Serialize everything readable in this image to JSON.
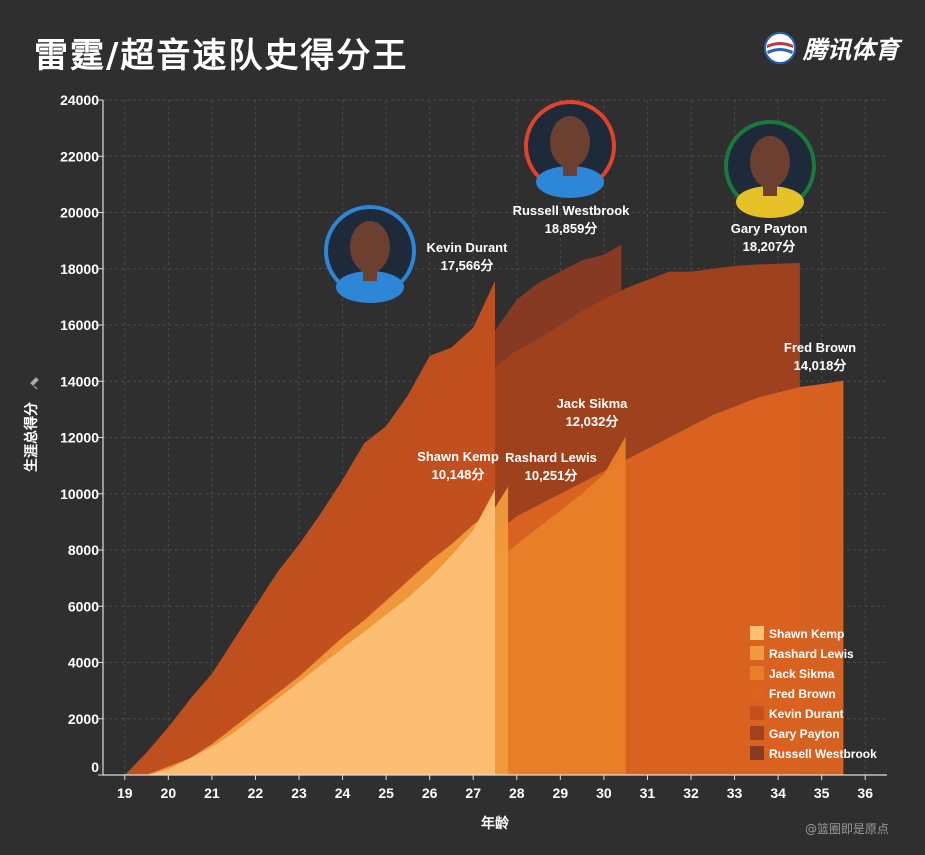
{
  "title": "雷霆/超音速队史得分王",
  "logo": {
    "text": "腾讯体育"
  },
  "watermark": "@篮圈即是原点",
  "chart_data": {
    "type": "area",
    "xlabel": "年龄",
    "ylabel": "生涯总得分",
    "xlim": [
      18.5,
      36.5
    ],
    "ylim": [
      0,
      24000
    ],
    "x_ticks": [
      "19",
      "20",
      "21",
      "22",
      "23",
      "24",
      "25",
      "26",
      "27",
      "28",
      "29",
      "30",
      "31",
      "32",
      "33",
      "34",
      "35",
      "36"
    ],
    "y_ticks": [
      "0",
      "2000",
      "4000",
      "6000",
      "8000",
      "10000",
      "12000",
      "14000",
      "16000",
      "18000",
      "20000",
      "22000",
      "24000"
    ],
    "grid": true,
    "legend_position": "bottom-right",
    "series": [
      {
        "name": "Russell Westbrook",
        "color": "#8a3a22",
        "label": "Russell Westbrook",
        "total": "18,859分",
        "points": [
          [
            19.5,
            0
          ],
          [
            20,
            1000
          ],
          [
            20.5,
            1800
          ],
          [
            21,
            2600
          ],
          [
            21.5,
            3600
          ],
          [
            22,
            4900
          ],
          [
            22.5,
            6000
          ],
          [
            23,
            7300
          ],
          [
            23.5,
            8300
          ],
          [
            24,
            9300
          ],
          [
            24.5,
            10100
          ],
          [
            25,
            11200
          ],
          [
            25.5,
            12500
          ],
          [
            26,
            13200
          ],
          [
            26.5,
            14400
          ],
          [
            27,
            15200
          ],
          [
            27.5,
            15800
          ],
          [
            28,
            16900
          ],
          [
            28.5,
            17500
          ],
          [
            29,
            17900
          ],
          [
            29.5,
            18300
          ],
          [
            30,
            18500
          ],
          [
            30.4,
            18859
          ]
        ]
      },
      {
        "name": "Gary Payton",
        "color": "#a1421e",
        "label": "Gary Payton",
        "total": "18,207分",
        "points": [
          [
            20,
            0
          ],
          [
            20.5,
            500
          ],
          [
            21,
            1200
          ],
          [
            21.5,
            1900
          ],
          [
            22,
            2800
          ],
          [
            22.5,
            3800
          ],
          [
            23,
            4800
          ],
          [
            23.5,
            5900
          ],
          [
            24,
            7100
          ],
          [
            24.5,
            8300
          ],
          [
            25,
            9500
          ],
          [
            25.5,
            10800
          ],
          [
            26,
            12000
          ],
          [
            26.5,
            13000
          ],
          [
            27,
            13800
          ],
          [
            27.5,
            14500
          ],
          [
            28,
            15100
          ],
          [
            28.5,
            15500
          ],
          [
            29,
            16000
          ],
          [
            29.5,
            16500
          ],
          [
            30,
            16900
          ],
          [
            30.5,
            17300
          ],
          [
            31,
            17600
          ],
          [
            31.5,
            17900
          ],
          [
            32,
            17900
          ],
          [
            32.5,
            18000
          ],
          [
            33,
            18100
          ],
          [
            33.5,
            18150
          ],
          [
            34,
            18180
          ],
          [
            34.5,
            18207
          ]
        ]
      },
      {
        "name": "Kevin Durant",
        "color": "#c4501e",
        "label": "Kevin Durant",
        "total": "17,566分",
        "points": [
          [
            19,
            0
          ],
          [
            19.5,
            800
          ],
          [
            20,
            1700
          ],
          [
            20.5,
            2700
          ],
          [
            21,
            3600
          ],
          [
            21.5,
            4800
          ],
          [
            22,
            6000
          ],
          [
            22.5,
            7200
          ],
          [
            23,
            8200
          ],
          [
            23.5,
            9300
          ],
          [
            24,
            10500
          ],
          [
            24.5,
            11800
          ],
          [
            25,
            12400
          ],
          [
            25.5,
            13500
          ],
          [
            26,
            14900
          ],
          [
            26.5,
            15200
          ],
          [
            27,
            15900
          ],
          [
            27.5,
            17566
          ]
        ]
      },
      {
        "name": "Fred Brown",
        "color": "#dc6420",
        "label": "Fred Brown",
        "total": "14,018分",
        "points": [
          [
            20.5,
            0
          ],
          [
            21,
            300
          ],
          [
            21.5,
            800
          ],
          [
            22,
            1400
          ],
          [
            22.5,
            2100
          ],
          [
            23,
            2800
          ],
          [
            23.5,
            3400
          ],
          [
            24,
            4100
          ],
          [
            24.5,
            4700
          ],
          [
            25,
            5400
          ],
          [
            25.5,
            6100
          ],
          [
            26,
            6800
          ],
          [
            26.5,
            7400
          ],
          [
            27,
            8000
          ],
          [
            27.5,
            8600
          ],
          [
            28,
            9200
          ],
          [
            28.5,
            9600
          ],
          [
            29,
            10000
          ],
          [
            29.5,
            10400
          ],
          [
            30,
            10800
          ],
          [
            30.5,
            11200
          ],
          [
            31,
            11600
          ],
          [
            31.5,
            12000
          ],
          [
            32,
            12400
          ],
          [
            32.5,
            12800
          ],
          [
            33,
            13100
          ],
          [
            33.5,
            13400
          ],
          [
            34,
            13600
          ],
          [
            34.5,
            13800
          ],
          [
            35,
            13900
          ],
          [
            35.5,
            14018
          ]
        ]
      },
      {
        "name": "Jack Sikma",
        "color": "#e87f28",
        "label": "Jack Sikma",
        "total": "12,032分",
        "points": [
          [
            21,
            0
          ],
          [
            21.5,
            400
          ],
          [
            22,
            1000
          ],
          [
            22.5,
            1600
          ],
          [
            23,
            2200
          ],
          [
            23.5,
            2800
          ],
          [
            24,
            3400
          ],
          [
            24.5,
            4000
          ],
          [
            25,
            4600
          ],
          [
            25.5,
            5200
          ],
          [
            26,
            5800
          ],
          [
            26.5,
            6400
          ],
          [
            27,
            7000
          ],
          [
            27.5,
            7600
          ],
          [
            28,
            8200
          ],
          [
            28.5,
            8800
          ],
          [
            29,
            9400
          ],
          [
            29.5,
            10000
          ],
          [
            30,
            10700
          ],
          [
            30.5,
            12032
          ]
        ]
      },
      {
        "name": "Rashard Lewis",
        "color": "#f19a3c",
        "label": "Rashard Lewis",
        "total": "10,251分",
        "points": [
          [
            19.5,
            0
          ],
          [
            20,
            300
          ],
          [
            20.5,
            600
          ],
          [
            21,
            1100
          ],
          [
            21.5,
            1700
          ],
          [
            22,
            2300
          ],
          [
            22.5,
            2900
          ],
          [
            23,
            3500
          ],
          [
            23.5,
            4200
          ],
          [
            24,
            4900
          ],
          [
            24.5,
            5500
          ],
          [
            25,
            6200
          ],
          [
            25.5,
            6900
          ],
          [
            26,
            7600
          ],
          [
            26.5,
            8200
          ],
          [
            27,
            8900
          ],
          [
            27.5,
            9500
          ],
          [
            27.8,
            10251
          ]
        ]
      },
      {
        "name": "Shawn Kemp",
        "color": "#fbbf76",
        "label": "Shawn Kemp",
        "total": "10,148分",
        "points": [
          [
            19.5,
            0
          ],
          [
            20,
            200
          ],
          [
            20.5,
            600
          ],
          [
            21,
            1000
          ],
          [
            21.5,
            1500
          ],
          [
            22,
            2100
          ],
          [
            22.5,
            2700
          ],
          [
            23,
            3300
          ],
          [
            23.5,
            3900
          ],
          [
            24,
            4500
          ],
          [
            24.5,
            5100
          ],
          [
            25,
            5700
          ],
          [
            25.5,
            6300
          ],
          [
            26,
            7000
          ],
          [
            26.5,
            7800
          ],
          [
            27,
            8700
          ],
          [
            27.5,
            10148
          ]
        ]
      }
    ]
  }
}
